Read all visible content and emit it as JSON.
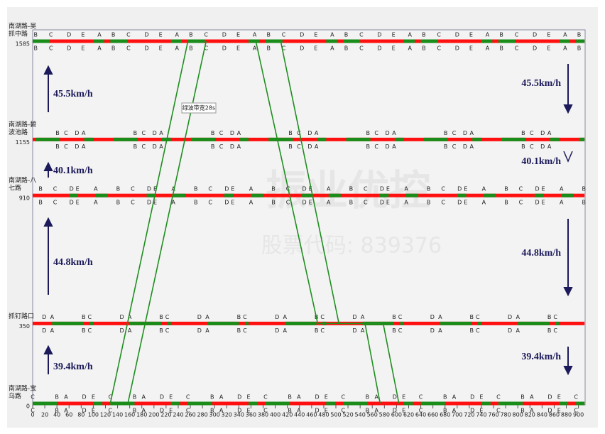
{
  "chart_data": {
    "type": "time-space",
    "xlim": [
      0,
      910
    ],
    "ylim": [
      0,
      1585
    ],
    "xticks": [
      0,
      20,
      40,
      60,
      80,
      100,
      120,
      140,
      160,
      180,
      200,
      220,
      240,
      260,
      280,
      300,
      320,
      340,
      360,
      380,
      400,
      420,
      440,
      460,
      480,
      500,
      520,
      540,
      560,
      580,
      600,
      620,
      640,
      660,
      680,
      700,
      720,
      740,
      760,
      780,
      800,
      820,
      840,
      860,
      880,
      900
    ],
    "intersections": [
      {
        "name": [
          "南湖路-吴",
          "抓中路"
        ],
        "position": 1585,
        "cycle": 128,
        "greens": [
          [
            0,
            28
          ],
          [
            100,
            118
          ]
        ],
        "phases": [
          {
            "label": "B",
            "t": 5
          },
          {
            "label": "C",
            "t": 30
          },
          {
            "label": "D",
            "t": 60
          },
          {
            "label": "E",
            "t": 83
          },
          {
            "label": "A",
            "t": 110
          }
        ]
      },
      {
        "name": [
          "南湖路-碧",
          "波池路"
        ],
        "position": 1155,
        "cycle": 128,
        "greens": [
          [
            5,
            45
          ],
          [
            85,
            100
          ]
        ],
        "phases": [
          {
            "label": "B",
            "t": 41
          },
          {
            "label": "C",
            "t": 55
          },
          {
            "label": "D",
            "t": 73
          },
          {
            "label": "A",
            "t": 84
          }
        ]
      },
      {
        "name": [
          "南湖路-八",
          "七路"
        ],
        "position": 910,
        "cycle": 128,
        "greens": [
          [
            60,
            75
          ],
          [
            104,
            124
          ]
        ],
        "phases": [
          {
            "label": "B",
            "t": 13
          },
          {
            "label": "C",
            "t": 37
          },
          {
            "label": "D",
            "t": 64
          },
          {
            "label": "E",
            "t": 74
          },
          {
            "label": "A",
            "t": 104
          }
        ]
      },
      {
        "name": [
          "抓钉路口"
        ],
        "position": 350,
        "cycle": 128,
        "greens": [
          [
            32,
            84
          ],
          [
            94,
            100
          ]
        ],
        "phases": [
          {
            "label": "D",
            "t": 19
          },
          {
            "label": "A",
            "t": 32
          },
          {
            "label": "B",
            "t": 84
          },
          {
            "label": "C",
            "t": 94
          }
        ]
      },
      {
        "name": [
          "南湖路-宝",
          "乌路"
        ],
        "position": 0,
        "cycle": 128,
        "greens": [
          [
            0,
            40
          ],
          [
            100,
            115
          ]
        ],
        "phases": [
          {
            "label": "C",
            "t": 0
          },
          {
            "label": "B",
            "t": 40
          },
          {
            "label": "A",
            "t": 55
          },
          {
            "label": "D",
            "t": 85
          },
          {
            "label": "E",
            "t": 100
          }
        ]
      }
    ],
    "bands": [
      {
        "color": "#1f8f1f",
        "x": [
          128,
          256
        ],
        "y": [
          0,
          1585
        ]
      },
      {
        "color": "#1f8f1f",
        "x": [
          157,
          286
        ],
        "y": [
          0,
          1585
        ]
      },
      {
        "color": "#1f8f1f",
        "x": [
          368,
          470,
          548,
          573
        ],
        "y": [
          1585,
          350,
          350,
          0
        ]
      },
      {
        "color": "#1f8f1f",
        "x": [
          409,
          505,
          578,
          604
        ],
        "y": [
          1585,
          350,
          350,
          0
        ]
      }
    ],
    "band_label": "绿波带宽28s",
    "speeds": [
      "45.5km/h",
      "40.1km/h",
      "44.8km/h",
      "39.4km/h"
    ],
    "watermark": {
      "name": "振业优控",
      "code": "股票代码: 839376"
    },
    "red": "#ff1010",
    "green": "#1a8c1a"
  }
}
